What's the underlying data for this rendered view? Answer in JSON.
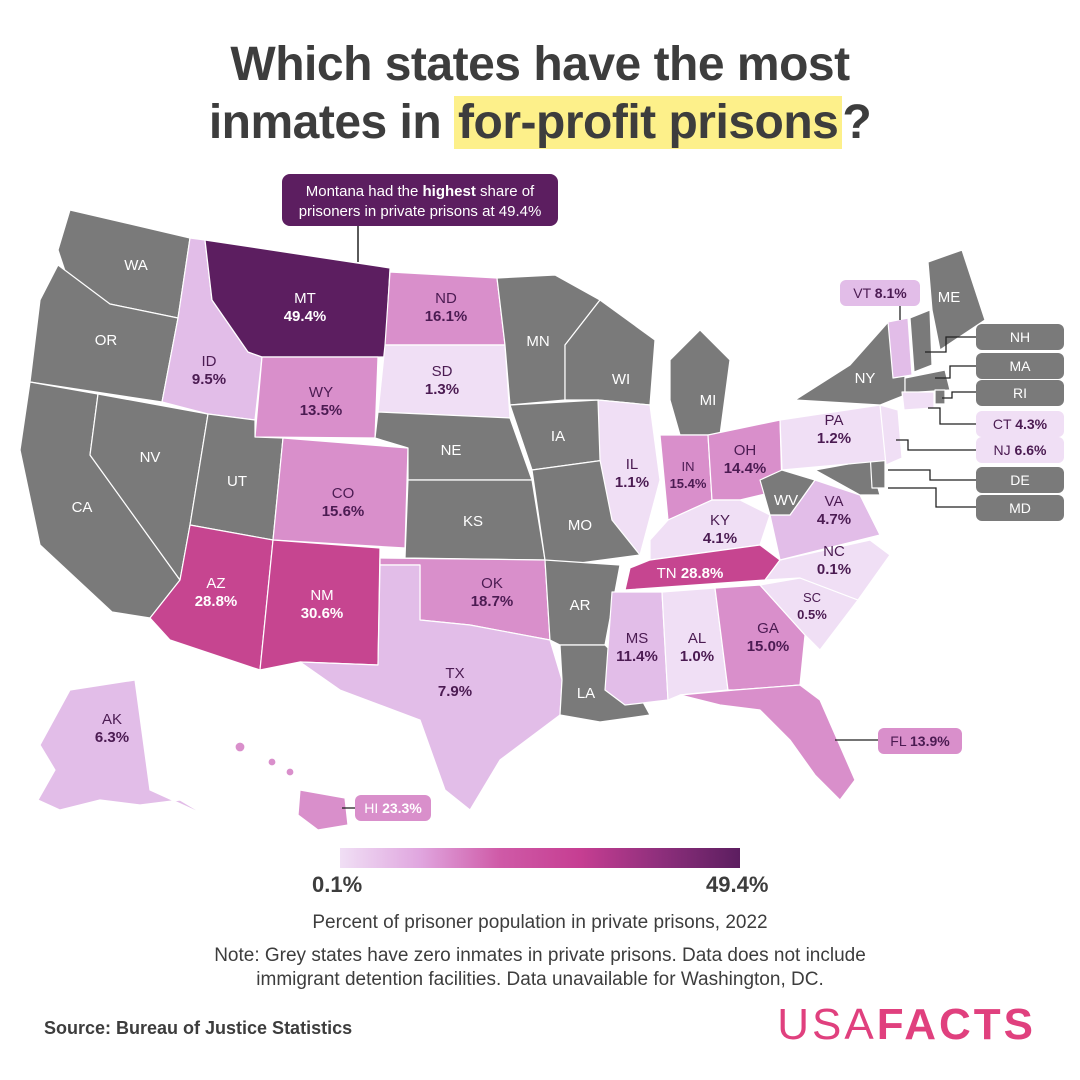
{
  "title": {
    "line1": "Which states have the most",
    "line2_prefix": "inmates in ",
    "highlight": "for-profit prisons",
    "line2_suffix": "?"
  },
  "callout": {
    "line1_a": "Montana had the ",
    "line1_b": "highest",
    "line1_c": " share of",
    "line2": "prisoners in private prisons at 49.4%"
  },
  "legend": {
    "min": "0.1%",
    "max": "49.4%"
  },
  "subtitle": "Percent of prisoner population in private prisons, 2022",
  "note": "Note: Grey states have zero inmates in private prisons. Data does not include immigrant detention facilities. Data unavailable for Washington, DC.",
  "source": "Source: Bureau of Justice Statistics",
  "brand": {
    "part1": "USA",
    "part2": "FACTS"
  },
  "colors": {
    "zero": "#7a7a7a",
    "lowest": "#f0dff5",
    "low": "#e2bde8",
    "mid": "#d98fcb",
    "high": "#c64590",
    "highest": "#5c1e60",
    "brand": "#e0407e"
  },
  "states": [
    {
      "abbr": "WA",
      "value": ""
    },
    {
      "abbr": "OR",
      "value": ""
    },
    {
      "abbr": "CA",
      "value": ""
    },
    {
      "abbr": "NV",
      "value": ""
    },
    {
      "abbr": "ID",
      "value": "9.5%"
    },
    {
      "abbr": "MT",
      "value": "49.4%"
    },
    {
      "abbr": "WY",
      "value": "13.5%"
    },
    {
      "abbr": "UT",
      "value": ""
    },
    {
      "abbr": "CO",
      "value": "15.6%"
    },
    {
      "abbr": "AZ",
      "value": "28.8%"
    },
    {
      "abbr": "NM",
      "value": "30.6%"
    },
    {
      "abbr": "ND",
      "value": "16.1%"
    },
    {
      "abbr": "SD",
      "value": "1.3%"
    },
    {
      "abbr": "NE",
      "value": ""
    },
    {
      "abbr": "KS",
      "value": ""
    },
    {
      "abbr": "OK",
      "value": "18.7%"
    },
    {
      "abbr": "TX",
      "value": "7.9%"
    },
    {
      "abbr": "MN",
      "value": ""
    },
    {
      "abbr": "IA",
      "value": ""
    },
    {
      "abbr": "MO",
      "value": ""
    },
    {
      "abbr": "AR",
      "value": ""
    },
    {
      "abbr": "LA",
      "value": ""
    },
    {
      "abbr": "WI",
      "value": ""
    },
    {
      "abbr": "IL",
      "value": "1.1%"
    },
    {
      "abbr": "MI",
      "value": ""
    },
    {
      "abbr": "IN",
      "value": "15.4%"
    },
    {
      "abbr": "OH",
      "value": "14.4%"
    },
    {
      "abbr": "KY",
      "value": "4.1%"
    },
    {
      "abbr": "TN",
      "value": "28.8%"
    },
    {
      "abbr": "MS",
      "value": "11.4%"
    },
    {
      "abbr": "AL",
      "value": "1.0%"
    },
    {
      "abbr": "GA",
      "value": "15.0%"
    },
    {
      "abbr": "FL",
      "value": "13.9%"
    },
    {
      "abbr": "SC",
      "value": "0.5%"
    },
    {
      "abbr": "NC",
      "value": "0.1%"
    },
    {
      "abbr": "VA",
      "value": "4.7%"
    },
    {
      "abbr": "WV",
      "value": ""
    },
    {
      "abbr": "PA",
      "value": "1.2%"
    },
    {
      "abbr": "NY",
      "value": ""
    },
    {
      "abbr": "VT",
      "value": "8.1%"
    },
    {
      "abbr": "NH",
      "value": ""
    },
    {
      "abbr": "ME",
      "value": ""
    },
    {
      "abbr": "MA",
      "value": ""
    },
    {
      "abbr": "RI",
      "value": ""
    },
    {
      "abbr": "CT",
      "value": "4.3%"
    },
    {
      "abbr": "NJ",
      "value": "6.6%"
    },
    {
      "abbr": "DE",
      "value": ""
    },
    {
      "abbr": "MD",
      "value": ""
    },
    {
      "abbr": "AK",
      "value": "6.3%"
    },
    {
      "abbr": "HI",
      "value": "23.3%"
    }
  ]
}
